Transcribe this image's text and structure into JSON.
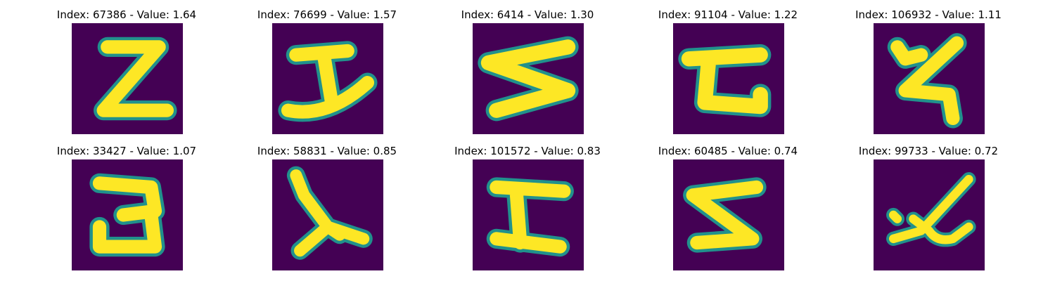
{
  "colors": {
    "background": "#440154",
    "stroke": "#fde725",
    "edge": "#21918c"
  },
  "panels": [
    {
      "title": "Index: 67386 - Value: 1.64",
      "glyph": "Z-like handwritten shape"
    },
    {
      "title": "Index: 76699 - Value: 1.57",
      "glyph": "I-like handwritten shape"
    },
    {
      "title": "Index: 6414 - Value: 1.30",
      "glyph": "S-like handwritten shape"
    },
    {
      "title": "Index: 91104 - Value: 1.22",
      "glyph": "C-like handwritten shape"
    },
    {
      "title": "Index: 106932 - Value: 1.11",
      "glyph": "S-like handwritten shape"
    },
    {
      "title": "Index: 33427 - Value: 1.07",
      "glyph": "3-like handwritten shape"
    },
    {
      "title": "Index: 58831 - Value: 0.85",
      "glyph": "Y-like handwritten shape"
    },
    {
      "title": "Index: 101572 - Value: 0.83",
      "glyph": "I-like handwritten shape"
    },
    {
      "title": "Index: 60485 - Value: 0.74",
      "glyph": "S-like handwritten shape"
    },
    {
      "title": "Index: 99733 - Value: 0.72",
      "glyph": "x-like handwritten shape"
    }
  ]
}
